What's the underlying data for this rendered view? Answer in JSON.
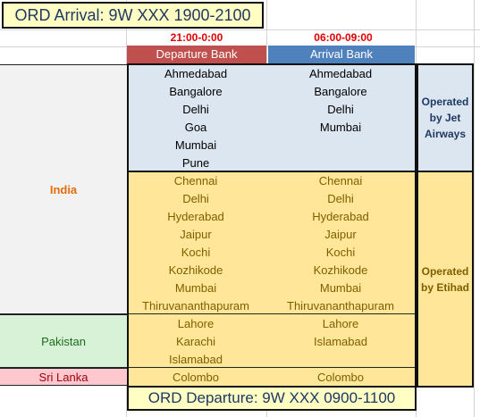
{
  "header": {
    "title": "ORD Arrival: 9W XXX 1900-2100",
    "departure_time": "21:00-0:00",
    "arrival_time": "06:00-09:00",
    "departure_bank_label": "Departure Bank",
    "arrival_bank_label": "Arrival Bank"
  },
  "regions": {
    "india": "India",
    "pakistan": "Pakistan",
    "sri_lanka": "Sri Lanka"
  },
  "jet": {
    "departure": [
      "Ahmedabad",
      "Bangalore",
      "Delhi",
      "Goa",
      "Mumbai",
      "Pune"
    ],
    "arrival": [
      "Ahmedabad",
      "Bangalore",
      "Delhi",
      "Mumbai"
    ],
    "operator_line1": "Operated",
    "operator_line2": "by Jet",
    "operator_line3": "Airways"
  },
  "etihad": {
    "india_departure": [
      "Chennai",
      "Delhi",
      "Hyderabad",
      "Jaipur",
      "Kochi",
      "Kozhikode",
      "Mumbai",
      "Thiruvananthapuram"
    ],
    "india_arrival": [
      "Chennai",
      "Delhi",
      "Hyderabad",
      "Jaipur",
      "Kochi",
      "Kozhikode",
      "Mumbai",
      "Thiruvananthapuram"
    ],
    "pakistan_departure": [
      "Lahore",
      "Karachi",
      "Islamabad"
    ],
    "pakistan_arrival": [
      "Lahore",
      "Islamabad"
    ],
    "srilanka_departure": [
      "Colombo"
    ],
    "srilanka_arrival": [
      "Colombo"
    ],
    "operator_line1": "Operated",
    "operator_line2": "by Etihad"
  },
  "footer": {
    "title": "ORD Departure: 9W XXX 0900-1100"
  },
  "colors": {
    "title_bg": "#ffffc4",
    "time_text": "#e00000",
    "departure_bank_bg": "#c0504d",
    "arrival_bank_bg": "#4f81bd",
    "jet_block_bg": "#dce6f1",
    "etihad_block_bg": "#ffe699",
    "india_bg": "#f2f2f2",
    "india_text": "#e46c0a",
    "pakistan_bg": "#d8f2d8",
    "pakistan_text": "#1e6b1e",
    "srilanka_bg": "#ffc7ce",
    "srilanka_text": "#9c0006",
    "jet_text": "#1f3864",
    "etihad_text": "#7f6000"
  }
}
